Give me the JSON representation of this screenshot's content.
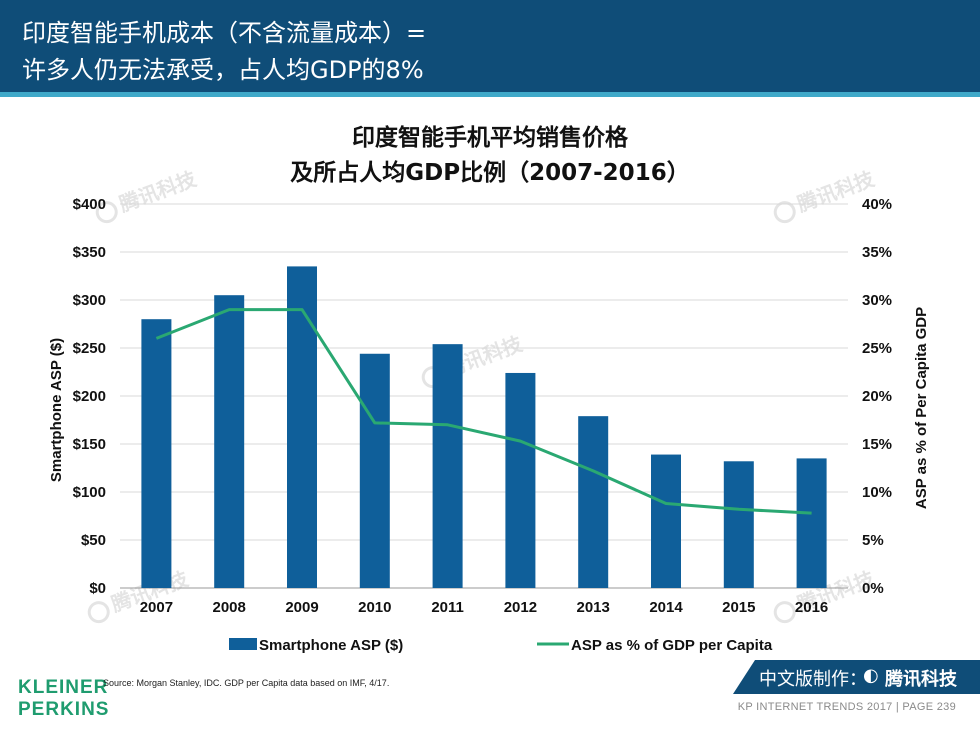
{
  "header": {
    "line1": "印度智能手机成本（不含流量成本）=",
    "line2": "许多人仍无法承受，占人均GDP的8%"
  },
  "chart_data": {
    "type": "bar",
    "title_line1": "印度智能手机平均销售价格",
    "title_line2": "及所占人均GDP比例（2007-2016）",
    "categories": [
      "2007",
      "2008",
      "2009",
      "2010",
      "2011",
      "2012",
      "2013",
      "2014",
      "2015",
      "2016"
    ],
    "series": [
      {
        "name": "Smartphone ASP ($)",
        "type": "bar",
        "axis": "left",
        "color": "#0f5f9a",
        "values": [
          280,
          305,
          335,
          244,
          254,
          224,
          179,
          139,
          132,
          135
        ]
      },
      {
        "name": "ASP as % of GDP per Capita",
        "type": "line",
        "axis": "right",
        "color": "#2aa872",
        "values": [
          26,
          29,
          29,
          17.2,
          17,
          15.3,
          12.2,
          8.8,
          8.2,
          7.8
        ]
      }
    ],
    "ylabel": "Smartphone ASP ($)",
    "y2label": "ASP as % of Per Capita GDP",
    "ylim": [
      0,
      400
    ],
    "y2lim": [
      0,
      40
    ],
    "yticks": [
      "$0",
      "$50",
      "$100",
      "$150",
      "$200",
      "$250",
      "$300",
      "$350",
      "$400"
    ],
    "y2ticks": [
      "0%",
      "5%",
      "10%",
      "15%",
      "20%",
      "25%",
      "30%",
      "35%",
      "40%"
    ],
    "grid": true,
    "legend_position": "bottom"
  },
  "watermark": {
    "text": "腾讯科技"
  },
  "logo": {
    "line1": "KLEINER",
    "line2": "PERKINS"
  },
  "source": "Source: Morgan Stanley, IDC. GDP per Capita data based on IMF, 4/17.",
  "badge": {
    "label": "中文版制作：",
    "brand": "腾讯科技"
  },
  "footer": {
    "text": "KP INTERNET TRENDS 2017  |  PAGE 239"
  },
  "colors": {
    "header": "#0f4d78",
    "accent": "#3fa9c9",
    "bar": "#0f5f9a",
    "line": "#2aa872",
    "logo": "#1f9c6f"
  }
}
